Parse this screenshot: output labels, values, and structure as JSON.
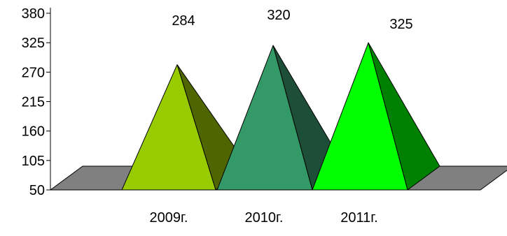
{
  "chart_data": {
    "type": "bar",
    "bar_shape": "pyramid",
    "style": "3d",
    "categories": [
      "2009г.",
      "2010г.",
      "2011г."
    ],
    "values": [
      284,
      320,
      325
    ],
    "data_labels": [
      "284",
      "320",
      "325"
    ],
    "title": "",
    "xlabel": "",
    "ylabel": "",
    "ylim": [
      50,
      380
    ],
    "yticks": [
      "50",
      "105",
      "160",
      "215",
      "270",
      "325",
      "380"
    ],
    "grid": false,
    "legend": "none",
    "colors": {
      "pyramids": [
        {
          "front": "#99CC00",
          "side": "#4F6600"
        },
        {
          "front": "#339966",
          "side": "#1D4E38"
        },
        {
          "front": "#00FF00",
          "side": "#008000"
        }
      ],
      "floor": "#808080",
      "stroke": "#000000"
    }
  }
}
